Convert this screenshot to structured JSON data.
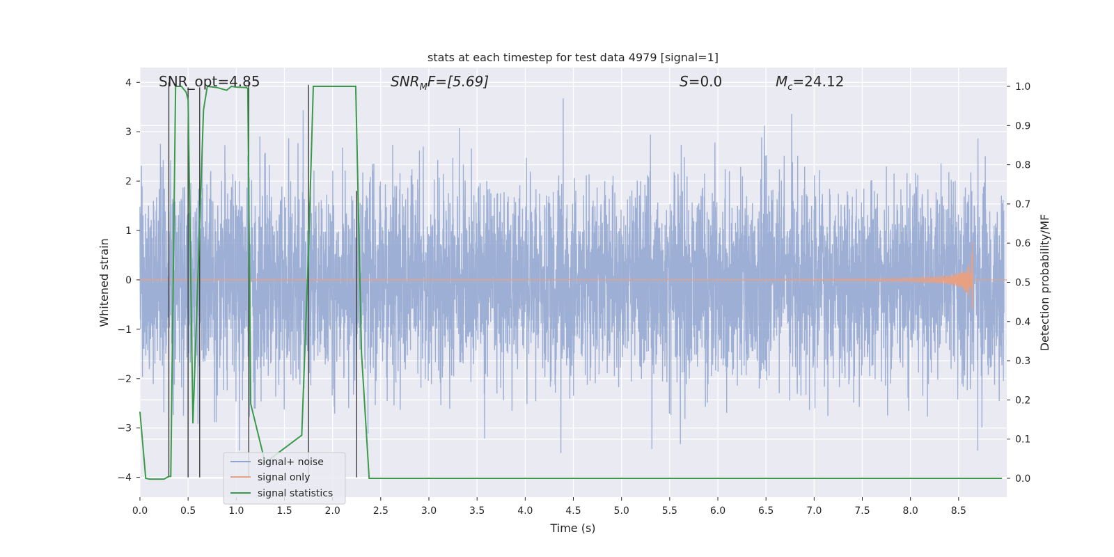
{
  "chart_data": {
    "type": "line",
    "title": "stats at each timestep for test data 4979 [signal=1]",
    "xlabel": "Time (s)",
    "ylabel_left": "Whitened strain",
    "ylabel_right": "Detection probability/MF",
    "xlim": [
      0.0,
      9.0
    ],
    "ylim_left": [
      -4.4,
      4.3
    ],
    "ylim_right": [
      -0.048,
      1.048
    ],
    "x_ticks": [
      "0.0",
      "0.5",
      "1.0",
      "1.5",
      "2.0",
      "2.5",
      "3.0",
      "3.5",
      "4.0",
      "4.5",
      "5.0",
      "5.5",
      "6.0",
      "6.5",
      "7.0",
      "7.5",
      "8.0",
      "8.5"
    ],
    "y_ticks_left": [
      "−4",
      "−3",
      "−2",
      "−1",
      "0",
      "1",
      "2",
      "3",
      "4"
    ],
    "y_ticks_right": [
      "0.0",
      "0.1",
      "0.2",
      "0.3",
      "0.4",
      "0.5",
      "0.6",
      "0.7",
      "0.8",
      "0.9",
      "1.0"
    ],
    "grid": true,
    "legend_position": "lower-left",
    "annotations": {
      "snr_opt": "SNR_opt=4.85",
      "snr_mf_base": "SNR",
      "snr_mf_sub": "M",
      "snr_mf_rest": "F=[5.69]",
      "s_italic": "S",
      "s_rest": "=0.0",
      "mc_base": "M",
      "mc_sub": "c",
      "mc_rest": "=24.12"
    },
    "series": [
      {
        "name": "signal+ noise",
        "color": "#8fa5cf",
        "axis": "left",
        "description_range": "noise fluctuates roughly between -3.8 and 3.9 across 0–9 s"
      },
      {
        "name": "signal only",
        "color": "#e8a083",
        "axis": "left",
        "chirp_end_time": 8.65,
        "chirp_peak_amplitude": 1.1
      },
      {
        "name": "signal statistics",
        "color": "#3a9a4a",
        "axis": "right",
        "x": [
          0.0,
          0.06,
          0.1,
          0.25,
          0.3,
          0.32,
          0.37,
          0.43,
          0.48,
          0.5,
          0.55,
          0.6,
          0.66,
          0.7,
          0.8,
          0.9,
          0.95,
          1.0,
          1.1,
          1.12,
          1.15,
          1.3,
          1.68,
          1.75,
          1.8,
          1.9,
          2.0,
          2.1,
          2.2,
          2.24,
          2.3,
          2.38,
          2.4,
          3.0,
          4.0,
          5.0,
          6.0,
          7.0,
          8.0,
          8.95
        ],
        "y": [
          0.17,
          0.0,
          -0.002,
          -0.002,
          0.005,
          0.005,
          1.0,
          1.0,
          0.985,
          0.965,
          0.14,
          0.5,
          0.94,
          1.0,
          0.997,
          0.99,
          1.0,
          0.998,
          0.997,
          0.995,
          0.19,
          0.04,
          0.11,
          0.58,
          1.0,
          1.0,
          1.0,
          1.0,
          1.0,
          1.0,
          0.32,
          0.0,
          0.0,
          0.0,
          0.0,
          0.0,
          0.0,
          0.0,
          0.0,
          0.0
        ]
      }
    ],
    "marker_lines": [
      {
        "x": 0.3,
        "y1": -4.0,
        "y2": 4.0
      },
      {
        "x": 0.5,
        "y1": -4.0,
        "y2": 3.9
      },
      {
        "x": 0.62,
        "y1": -4.0,
        "y2": 3.9
      },
      {
        "x": 1.13,
        "y1": -4.0,
        "y2": 4.0
      },
      {
        "x": 1.75,
        "y1": -4.0,
        "y2": 3.95
      },
      {
        "x": 2.25,
        "y1": -4.0,
        "y2": 1.8
      }
    ],
    "colors": {
      "background": "#eaeaf2",
      "grid": "#ffffff",
      "marker_lines": "#3c3c3c"
    }
  }
}
